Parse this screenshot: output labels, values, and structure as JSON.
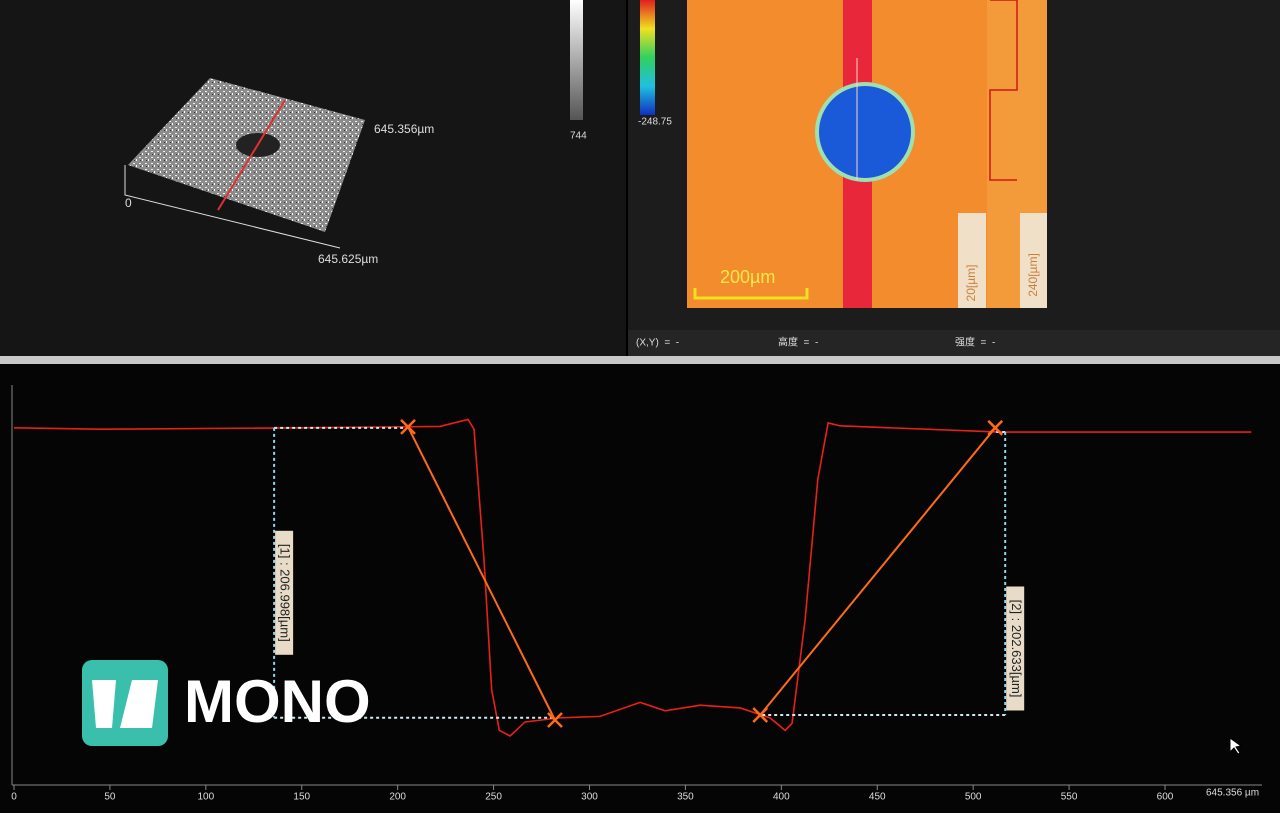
{
  "view3d": {
    "y_size": "645.356µm",
    "origin": "0",
    "x_size": "645.625µm",
    "scale_max": "744"
  },
  "image": {
    "scale_min": "-248.75",
    "scale_bar": "200µm",
    "profile_labels": [
      "20[µm]",
      "240[µm]"
    ]
  },
  "status": [
    "(X,Y)  =  -",
    "高度  =  -",
    "强度  =  -"
  ],
  "logo": "MONO",
  "chart_data": {
    "type": "line",
    "x": [
      0,
      44.8,
      149,
      222,
      236.7,
      239.8,
      245,
      249,
      253,
      258.6,
      266.4,
      284.7,
      305.5,
      326.4,
      339.4,
      357.7,
      378.5,
      394,
      402,
      405.6,
      412.4,
      419,
      424.4,
      430.6,
      514,
      645
    ],
    "values": [
      0,
      -1,
      0,
      1,
      6,
      -1,
      -94,
      -187,
      -216,
      -220,
      -210,
      -207,
      -206,
      -196,
      -202,
      -198,
      -200,
      -207,
      -216,
      -211,
      -137,
      -37,
      3.5,
      1.4,
      -3,
      -3
    ],
    "color": "#e8201a",
    "xlim": [
      0,
      645.356
    ],
    "xticks": [
      0,
      50,
      100,
      150,
      200,
      250,
      300,
      350,
      400,
      450,
      500,
      550,
      600
    ],
    "xlim_label": "645.356 µm",
    "ylim": [
      -255,
      27
    ],
    "markers": {
      "x": [
        205.4,
        282,
        389,
        511.5
      ],
      "values": [
        0.7,
        -208.6,
        -205,
        0
      ],
      "color": "#ff6a1a"
    },
    "measurements": [
      {
        "label": "[1] : 206.998[µm]",
        "x": 135.6,
        "top": 0,
        "bottom": -207
      },
      {
        "label": "[2] : 202.633[µm]",
        "x": 516.7,
        "top": -3,
        "bottom": -205
      }
    ]
  }
}
